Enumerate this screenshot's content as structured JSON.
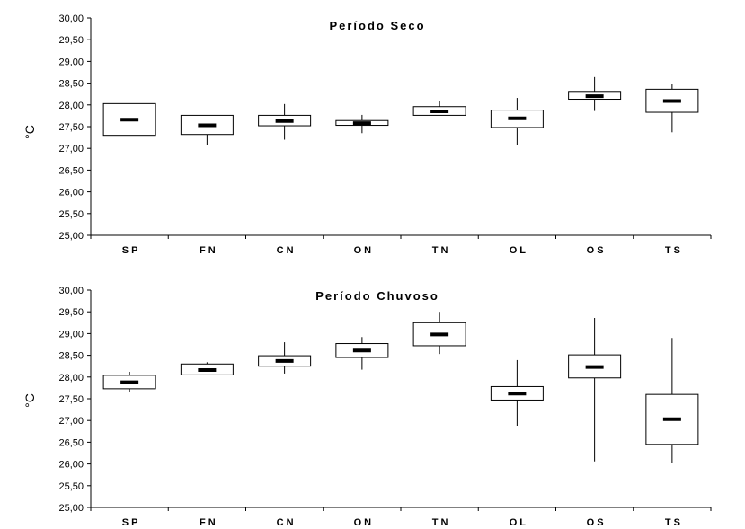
{
  "chart_data": [
    {
      "type": "box",
      "title": "Período Seco",
      "ylabel": "°C",
      "ylim": [
        25.0,
        30.0
      ],
      "ytick_step": 0.5,
      "categories": [
        "SP",
        "FN",
        "CN",
        "ON",
        "TN",
        "OL",
        "OS",
        "TS"
      ],
      "boxes": [
        {
          "min": 27.3,
          "q1": 27.3,
          "median": 27.66,
          "q3": 28.03,
          "max": 28.03
        },
        {
          "min": 27.08,
          "q1": 27.32,
          "median": 27.53,
          "q3": 27.76,
          "max": 27.76
        },
        {
          "min": 27.2,
          "q1": 27.52,
          "median": 27.63,
          "q3": 27.76,
          "max": 28.02
        },
        {
          "min": 27.35,
          "q1": 27.53,
          "median": 27.58,
          "q3": 27.64,
          "max": 27.77
        },
        {
          "min": 27.76,
          "q1": 27.76,
          "median": 27.85,
          "q3": 27.96,
          "max": 28.08
        },
        {
          "min": 27.08,
          "q1": 27.48,
          "median": 27.69,
          "q3": 27.88,
          "max": 28.16
        },
        {
          "min": 27.86,
          "q1": 28.13,
          "median": 28.2,
          "q3": 28.31,
          "max": 28.64
        },
        {
          "min": 27.37,
          "q1": 27.83,
          "median": 28.09,
          "q3": 28.36,
          "max": 28.48
        }
      ],
      "yticks": [
        "25,00",
        "25,50",
        "26,00",
        "26,50",
        "27,00",
        "27,50",
        "28,00",
        "28,50",
        "29,00",
        "29,50",
        "30,00"
      ]
    },
    {
      "type": "box",
      "title": "Período Chuvoso",
      "ylabel": "°C",
      "ylim": [
        25.0,
        30.0
      ],
      "ytick_step": 0.5,
      "categories": [
        "SP",
        "FN",
        "CN",
        "ON",
        "TN",
        "OL",
        "OS",
        "TS"
      ],
      "boxes": [
        {
          "min": 27.65,
          "q1": 27.73,
          "median": 27.88,
          "q3": 28.04,
          "max": 28.12
        },
        {
          "min": 28.04,
          "q1": 28.05,
          "median": 28.16,
          "q3": 28.3,
          "max": 28.34
        },
        {
          "min": 28.08,
          "q1": 28.25,
          "median": 28.37,
          "q3": 28.49,
          "max": 28.8
        },
        {
          "min": 28.17,
          "q1": 28.45,
          "median": 28.61,
          "q3": 28.77,
          "max": 28.92
        },
        {
          "min": 28.53,
          "q1": 28.72,
          "median": 28.98,
          "q3": 29.25,
          "max": 29.5
        },
        {
          "min": 26.88,
          "q1": 27.47,
          "median": 27.62,
          "q3": 27.78,
          "max": 28.39
        },
        {
          "min": 26.06,
          "q1": 27.98,
          "median": 28.23,
          "q3": 28.51,
          "max": 29.36
        },
        {
          "min": 26.02,
          "q1": 26.45,
          "median": 27.03,
          "q3": 27.6,
          "max": 28.9
        }
      ],
      "yticks": [
        "25,00",
        "25,50",
        "26,00",
        "26,50",
        "27,00",
        "27,50",
        "28,00",
        "28,50",
        "29,00",
        "29,50",
        "30,00"
      ]
    }
  ]
}
